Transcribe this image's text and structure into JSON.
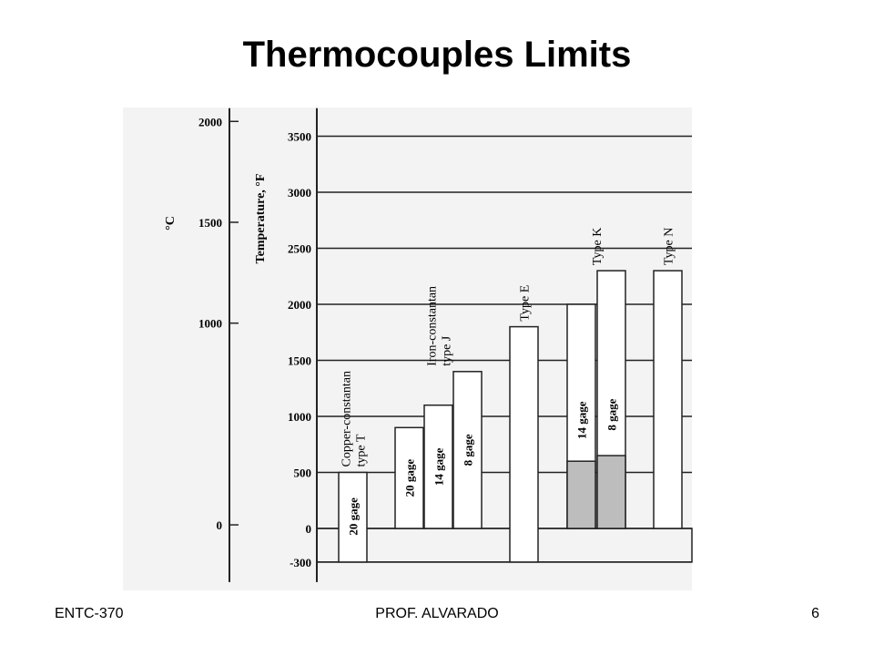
{
  "slide": {
    "title": "Thermocouples Limits",
    "footer_left": "ENTC-370",
    "footer_center": "PROF. ALVARADO",
    "footer_right": "6"
  },
  "chart_data": {
    "type": "range-bar",
    "ylabel": "Temperature, °F",
    "y2label": "°C",
    "ylim": [
      -300,
      3750
    ],
    "yticks": [
      -300,
      0,
      500,
      1000,
      1500,
      2000,
      2500,
      3000,
      3500
    ],
    "y2ticks": [
      0,
      1000,
      1500,
      2000
    ],
    "grid": true,
    "groups": [
      {
        "name": [
          "Copper-constantan",
          "type T"
        ],
        "bars": [
          {
            "label": "20 gage",
            "low": -300,
            "high": 500
          }
        ]
      },
      {
        "name": [
          "Iron-constantan",
          "type J"
        ],
        "bars": [
          {
            "label": "20 gage",
            "low": 0,
            "high": 900
          },
          {
            "label": "14 gage",
            "low": 0,
            "high": 1100
          },
          {
            "label": "8 gage",
            "low": 0,
            "high": 1400
          }
        ]
      },
      {
        "name": [
          "Type E"
        ],
        "bars": [
          {
            "low": -300,
            "high": 1800
          }
        ]
      },
      {
        "name": [
          "Type K"
        ],
        "bars": [
          {
            "label": "14 gage",
            "low": 0,
            "high": 2000,
            "shaded": 600
          },
          {
            "label": "8 gage",
            "low": 0,
            "high": 2300,
            "shaded": 650
          }
        ]
      },
      {
        "name": [
          "Type N"
        ],
        "bars": [
          {
            "low": 0,
            "high": 2300
          }
        ]
      }
    ]
  }
}
